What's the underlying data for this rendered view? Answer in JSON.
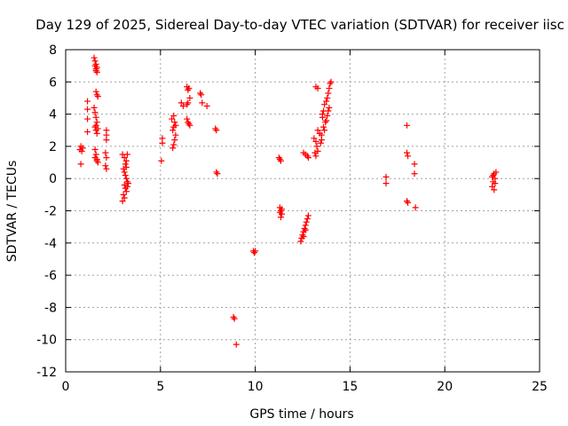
{
  "chart_data": {
    "type": "scatter",
    "title": "Day 129 of 2025, Sidereal Day-to-day VTEC variation (SDTVAR) for receiver iisc",
    "xlabel": "GPS time / hours",
    "ylabel": "SDTVAR / TECUs",
    "xlim": [
      0,
      25
    ],
    "ylim": [
      -12,
      8
    ],
    "xticks": [
      0,
      5,
      10,
      15,
      20,
      25
    ],
    "yticks": [
      -12,
      -10,
      -8,
      -6,
      -4,
      -2,
      0,
      2,
      4,
      6,
      8
    ],
    "grid": true,
    "marker": "+",
    "color": "#ff0000",
    "series": [
      {
        "name": "SDTVAR",
        "points": [
          [
            0.75,
            1.8
          ],
          [
            0.8,
            2.0
          ],
          [
            0.85,
            1.7
          ],
          [
            0.8,
            0.9
          ],
          [
            0.9,
            1.9
          ],
          [
            1.15,
            4.8
          ],
          [
            1.15,
            4.3
          ],
          [
            1.15,
            3.7
          ],
          [
            1.15,
            2.9
          ],
          [
            1.5,
            7.5
          ],
          [
            1.55,
            7.3
          ],
          [
            1.6,
            7.1
          ],
          [
            1.65,
            6.9
          ],
          [
            1.6,
            6.7
          ],
          [
            1.55,
            7.0
          ],
          [
            1.6,
            6.8
          ],
          [
            1.65,
            6.6
          ],
          [
            1.6,
            5.4
          ],
          [
            1.65,
            5.2
          ],
          [
            1.7,
            5.1
          ],
          [
            1.5,
            4.4
          ],
          [
            1.55,
            4.1
          ],
          [
            1.6,
            3.8
          ],
          [
            1.65,
            3.5
          ],
          [
            1.55,
            3.2
          ],
          [
            1.6,
            3.0
          ],
          [
            1.65,
            2.8
          ],
          [
            1.7,
            3.1
          ],
          [
            1.6,
            3.3
          ],
          [
            1.55,
            1.8
          ],
          [
            1.6,
            1.5
          ],
          [
            1.65,
            1.2
          ],
          [
            1.7,
            1.0
          ],
          [
            1.55,
            1.3
          ],
          [
            1.65,
            1.1
          ],
          [
            2.15,
            3.0
          ],
          [
            2.15,
            2.7
          ],
          [
            2.15,
            2.4
          ],
          [
            2.1,
            1.6
          ],
          [
            2.15,
            1.3
          ],
          [
            2.1,
            0.8
          ],
          [
            2.15,
            0.6
          ],
          [
            3.0,
            1.5
          ],
          [
            3.1,
            1.3
          ],
          [
            3.2,
            1.1
          ],
          [
            3.15,
            0.9
          ],
          [
            3.05,
            0.6
          ],
          [
            3.1,
            0.4
          ],
          [
            3.15,
            0.2
          ],
          [
            3.2,
            0.0
          ],
          [
            3.25,
            -0.2
          ],
          [
            3.1,
            -0.4
          ],
          [
            3.15,
            -0.6
          ],
          [
            3.2,
            -0.8
          ],
          [
            3.05,
            -1.0
          ],
          [
            3.1,
            -1.2
          ],
          [
            3.0,
            -1.4
          ],
          [
            3.25,
            1.5
          ],
          [
            3.2,
            0.7
          ],
          [
            3.3,
            -0.3
          ],
          [
            3.25,
            -0.5
          ],
          [
            5.1,
            2.5
          ],
          [
            5.1,
            2.2
          ],
          [
            5.05,
            1.1
          ],
          [
            5.6,
            3.7
          ],
          [
            5.7,
            3.9
          ],
          [
            5.75,
            3.5
          ],
          [
            5.7,
            3.2
          ],
          [
            5.65,
            3.0
          ],
          [
            5.8,
            2.7
          ],
          [
            5.75,
            2.4
          ],
          [
            5.7,
            2.1
          ],
          [
            5.65,
            1.9
          ],
          [
            5.8,
            3.3
          ],
          [
            6.1,
            4.7
          ],
          [
            6.2,
            4.5
          ],
          [
            6.4,
            5.7
          ],
          [
            6.45,
            5.5
          ],
          [
            6.5,
            5.6
          ],
          [
            6.55,
            5.0
          ],
          [
            6.45,
            4.7
          ],
          [
            6.4,
            4.6
          ],
          [
            6.4,
            3.7
          ],
          [
            6.45,
            3.5
          ],
          [
            6.5,
            3.4
          ],
          [
            6.55,
            3.3
          ],
          [
            7.1,
            5.3
          ],
          [
            7.15,
            5.2
          ],
          [
            7.2,
            4.7
          ],
          [
            7.45,
            4.5
          ],
          [
            7.9,
            3.1
          ],
          [
            7.95,
            3.0
          ],
          [
            7.95,
            0.4
          ],
          [
            8.0,
            0.3
          ],
          [
            8.85,
            -8.6
          ],
          [
            8.9,
            -8.7
          ],
          [
            9.0,
            -10.3
          ],
          [
            9.9,
            -4.5
          ],
          [
            9.95,
            -4.6
          ],
          [
            10.0,
            -4.5
          ],
          [
            11.25,
            1.3
          ],
          [
            11.3,
            1.2
          ],
          [
            11.35,
            1.1
          ],
          [
            11.3,
            -1.8
          ],
          [
            11.35,
            -2.0
          ],
          [
            11.4,
            -2.2
          ],
          [
            11.35,
            -2.4
          ],
          [
            11.3,
            -2.1
          ],
          [
            11.4,
            -1.9
          ],
          [
            12.4,
            -3.9
          ],
          [
            12.45,
            -3.7
          ],
          [
            12.5,
            -3.5
          ],
          [
            12.55,
            -3.3
          ],
          [
            12.6,
            -3.1
          ],
          [
            12.65,
            -2.9
          ],
          [
            12.7,
            -2.7
          ],
          [
            12.75,
            -2.5
          ],
          [
            12.8,
            -2.3
          ],
          [
            12.55,
            -3.6
          ],
          [
            12.65,
            -3.2
          ],
          [
            12.55,
            1.6
          ],
          [
            12.65,
            1.5
          ],
          [
            12.75,
            1.4
          ],
          [
            12.8,
            1.3
          ],
          [
            13.1,
            2.5
          ],
          [
            13.2,
            2.3
          ],
          [
            13.25,
            2.0
          ],
          [
            13.15,
            1.6
          ],
          [
            13.2,
            1.4
          ],
          [
            13.3,
            1.7
          ],
          [
            13.2,
            5.7
          ],
          [
            13.3,
            5.6
          ],
          [
            13.3,
            3.0
          ],
          [
            13.4,
            2.8
          ],
          [
            13.45,
            2.2
          ],
          [
            13.5,
            2.4
          ],
          [
            13.55,
            3.8
          ],
          [
            13.6,
            4.2
          ],
          [
            13.65,
            4.6
          ],
          [
            13.55,
            4.0
          ],
          [
            13.7,
            3.5
          ],
          [
            13.6,
            3.2
          ],
          [
            13.5,
            2.7
          ],
          [
            13.65,
            3.0
          ],
          [
            13.75,
            4.8
          ],
          [
            13.8,
            5.0
          ],
          [
            13.85,
            5.3
          ],
          [
            13.9,
            5.6
          ],
          [
            13.95,
            5.9
          ],
          [
            14.0,
            6.0
          ],
          [
            13.85,
            4.2
          ],
          [
            13.8,
            3.9
          ],
          [
            13.75,
            3.6
          ],
          [
            13.9,
            4.4
          ],
          [
            16.9,
            0.1
          ],
          [
            16.9,
            -0.3
          ],
          [
            18.0,
            3.3
          ],
          [
            18.0,
            1.6
          ],
          [
            18.05,
            1.4
          ],
          [
            18.0,
            -1.4
          ],
          [
            18.05,
            -1.5
          ],
          [
            18.4,
            0.9
          ],
          [
            18.4,
            0.3
          ],
          [
            18.45,
            -1.8
          ],
          [
            22.5,
            0.1
          ],
          [
            22.55,
            -0.2
          ],
          [
            22.6,
            0.3
          ],
          [
            22.65,
            0.0
          ],
          [
            22.5,
            -0.5
          ],
          [
            22.6,
            -0.7
          ],
          [
            22.7,
            0.4
          ],
          [
            22.55,
            0.2
          ],
          [
            22.65,
            -0.3
          ]
        ]
      }
    ]
  }
}
